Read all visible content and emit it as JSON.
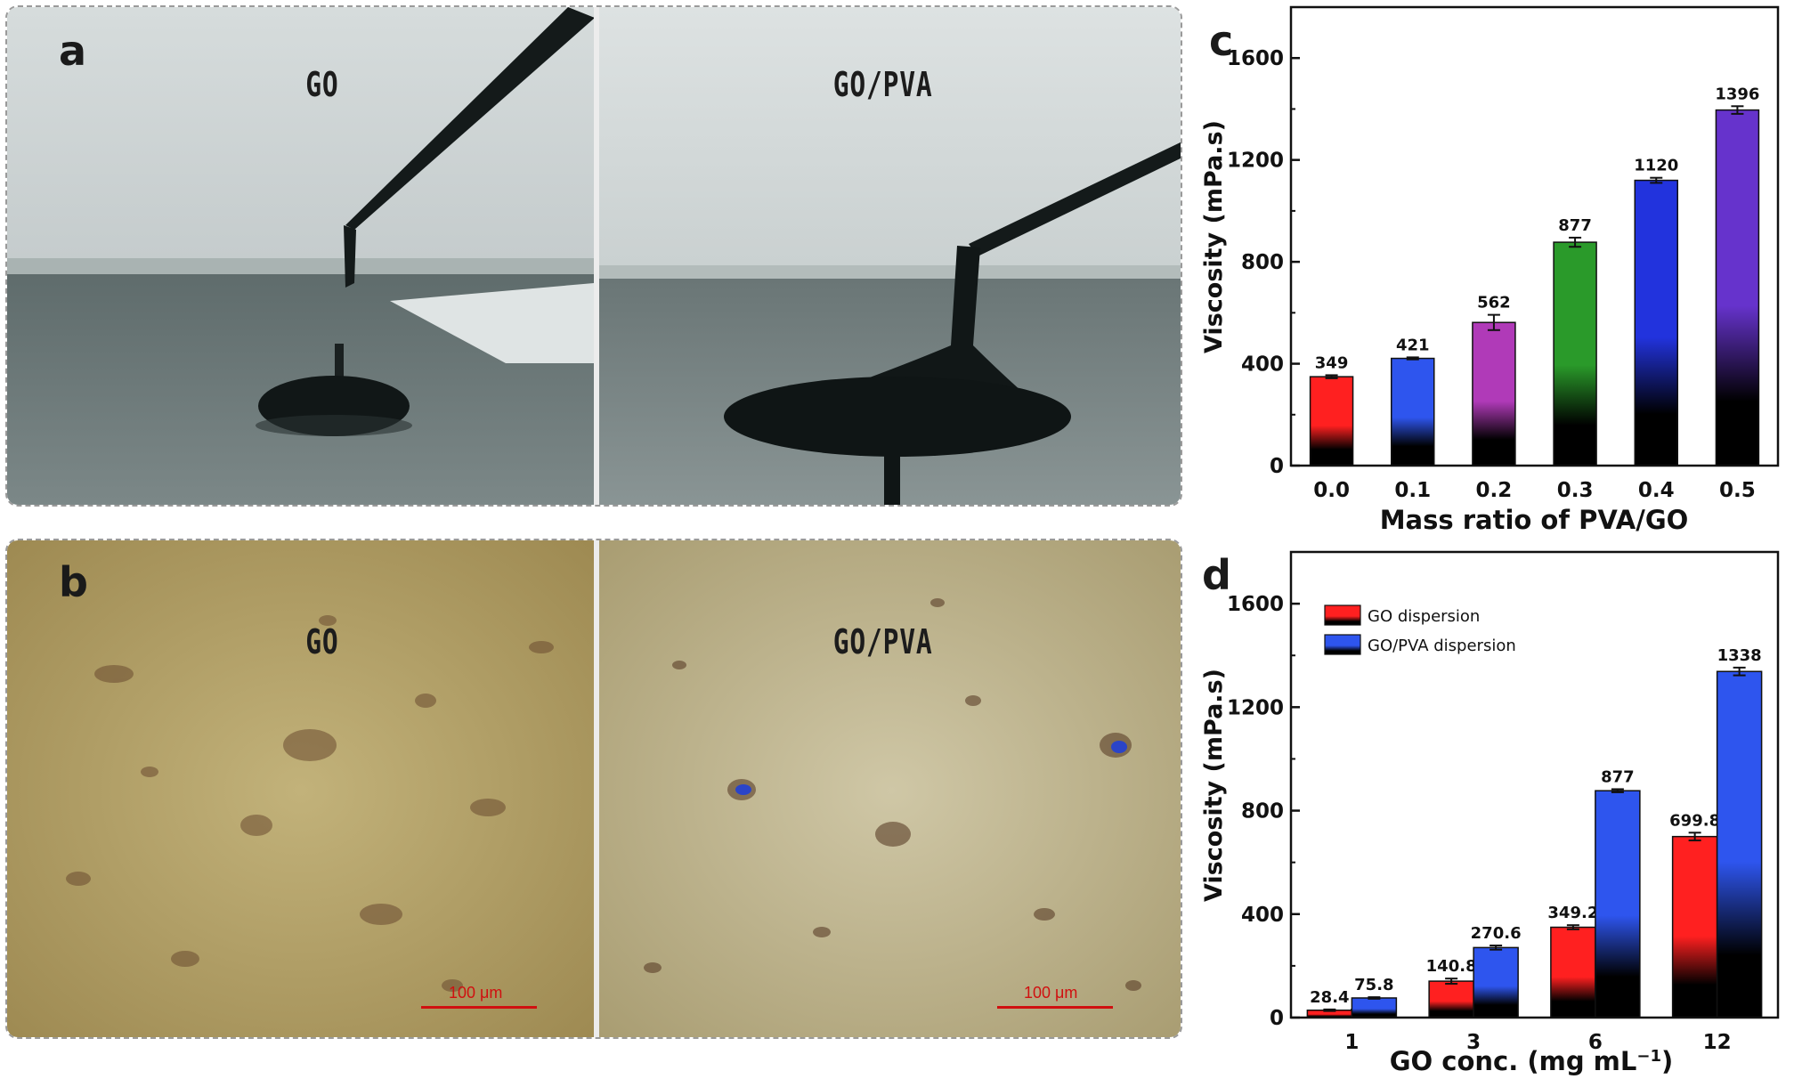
{
  "panel_a": {
    "letter": "a",
    "left_label": "GO",
    "right_label": "GO/PVA"
  },
  "panel_b": {
    "letter": "b",
    "left_label": "GO",
    "right_label": "GO/PVA",
    "scale_bar": "100 μm"
  },
  "chart_data": [
    {
      "panel": "c",
      "type": "bar",
      "categories": [
        "0.0",
        "0.1",
        "0.2",
        "0.3",
        "0.4",
        "0.5"
      ],
      "values": [
        349,
        421,
        562,
        877,
        1120,
        1396
      ],
      "value_labels": [
        "349",
        "421",
        "562",
        "877",
        "1120",
        "1396"
      ],
      "errors": [
        6,
        4,
        30,
        18,
        10,
        15
      ],
      "colors": [
        "#ff2020",
        "#2e55ee",
        "#b03ab8",
        "#2a9a2a",
        "#2233dd",
        "#6633cc"
      ],
      "xlabel": "Mass ratio of PVA/GO",
      "ylabel": "Viscosity (mPa.s)",
      "ylim": [
        0,
        1800
      ],
      "yticks": [
        0,
        400,
        800,
        1200,
        1600
      ],
      "grid": false
    },
    {
      "panel": "d",
      "type": "bar",
      "categories": [
        "1",
        "3",
        "6",
        "12"
      ],
      "series": [
        {
          "name": "GO dispersion",
          "color": "#ff2020",
          "values": [
            28.4,
            140.8,
            349.2,
            699.8
          ],
          "value_labels": [
            "28.4",
            "140.8",
            "349.2",
            "699.8"
          ],
          "errors": [
            3,
            10,
            8,
            15
          ]
        },
        {
          "name": "GO/PVA dispersion",
          "color": "#2e55ee",
          "values": [
            75.8,
            270.6,
            877,
            1338
          ],
          "value_labels": [
            "75.8",
            "270.6",
            "877",
            "1338"
          ],
          "errors": [
            3,
            8,
            6,
            15
          ]
        }
      ],
      "xlabel": "GO conc. (mg mL",
      "xlabel_sup": "−1",
      "xlabel_end": ")",
      "ylabel": "Viscosity (mPa.s)",
      "ylim": [
        0,
        1800
      ],
      "yticks": [
        0,
        400,
        800,
        1200,
        1600
      ],
      "legend_position": "top-left",
      "grid": false
    }
  ]
}
